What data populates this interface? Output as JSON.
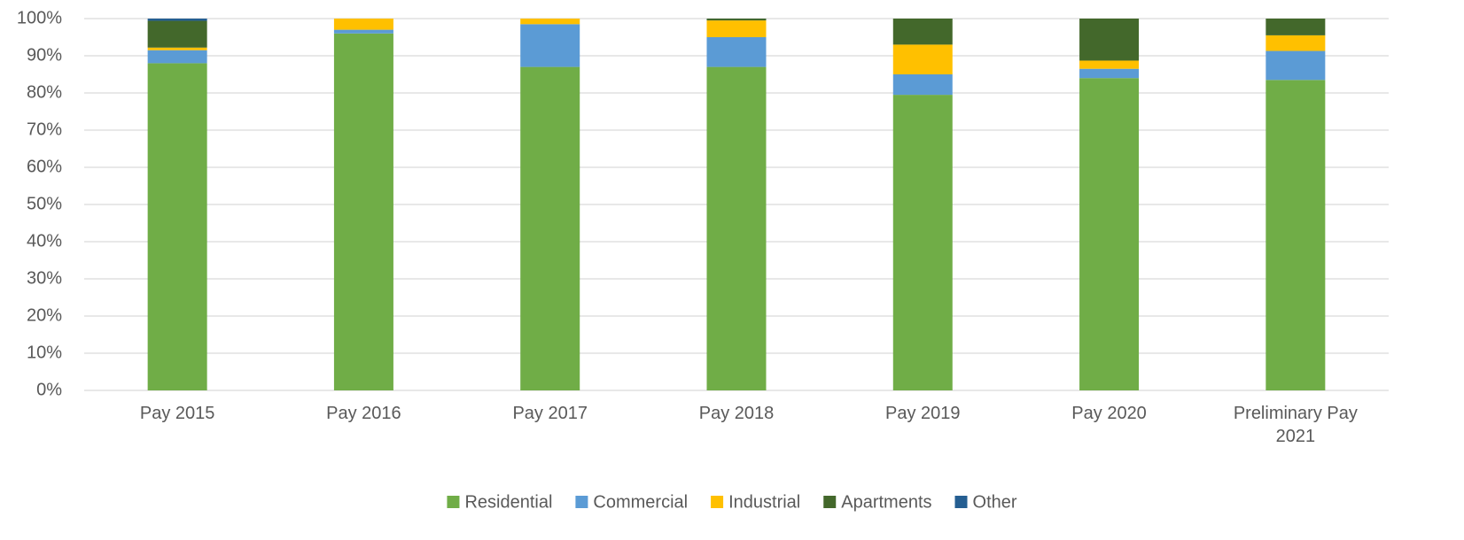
{
  "chart_data": {
    "type": "bar",
    "stacked": true,
    "categories": [
      "Pay 2015",
      "Pay 2016",
      "Pay 2017",
      "Pay 2018",
      "Pay 2019",
      "Pay 2020",
      "Preliminary Pay 2021"
    ],
    "series": [
      {
        "name": "Residential",
        "color": "#70ad47",
        "values": [
          88,
          96,
          87,
          87,
          79.5,
          84,
          83.5
        ]
      },
      {
        "name": "Commercial",
        "color": "#5b9bd5",
        "values": [
          3.5,
          1,
          11.5,
          8,
          5.5,
          2.5,
          7.8
        ]
      },
      {
        "name": "Industrial",
        "color": "#ffc000",
        "values": [
          0.7,
          3,
          1.5,
          4.5,
          8,
          2.2,
          4.2
        ]
      },
      {
        "name": "Apartments",
        "color": "#43682b",
        "values": [
          7.2,
          0,
          0,
          0.5,
          7,
          11.3,
          4.5
        ]
      },
      {
        "name": "Other",
        "color": "#255e91",
        "values": [
          0.6,
          0,
          0,
          0,
          0,
          0,
          0
        ]
      }
    ],
    "ylim": [
      0,
      100
    ],
    "yticks": [
      {
        "value": 0,
        "label": "0%"
      },
      {
        "value": 10,
        "label": "10%"
      },
      {
        "value": 20,
        "label": "20%"
      },
      {
        "value": 30,
        "label": "30%"
      },
      {
        "value": 40,
        "label": "40%"
      },
      {
        "value": 50,
        "label": "50%"
      },
      {
        "value": 60,
        "label": "60%"
      },
      {
        "value": 70,
        "label": "70%"
      },
      {
        "value": 80,
        "label": "80%"
      },
      {
        "value": 90,
        "label": "90%"
      },
      {
        "value": 100,
        "label": "100%"
      }
    ],
    "grid": true,
    "legend": "bottom"
  }
}
